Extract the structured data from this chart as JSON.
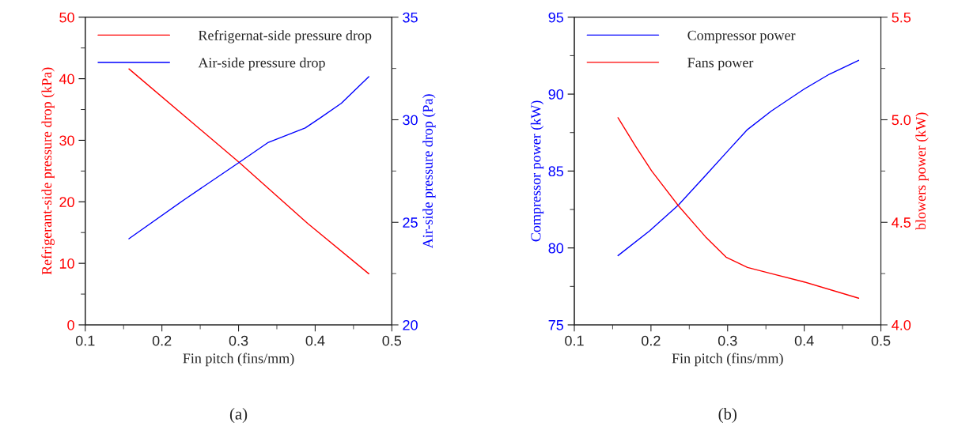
{
  "chart_data": [
    {
      "type": "line",
      "xlabel": "Fin pitch (fins/mm)",
      "ylabel": "Refrigerant-side pressure drop (kPa)",
      "y2label": "Air-side pressure drop (Pa)",
      "xlim": [
        0.1,
        0.5
      ],
      "xticks": [
        0.1,
        0.2,
        0.3,
        0.4,
        0.5
      ],
      "ylim": [
        0,
        50
      ],
      "yticks": [
        0,
        10,
        20,
        30,
        40,
        50
      ],
      "y2lim": [
        20,
        35
      ],
      "y2ticks": [
        20,
        25,
        30,
        35
      ],
      "legend": "top left",
      "grid": false,
      "annotations": [
        "(a)"
      ],
      "series": [
        {
          "name": "Refrigernat-side pressure drop",
          "color": "#ff0000",
          "x": [
            0.157,
            0.3,
            0.39,
            0.47
          ],
          "values": [
            41.6,
            26.5,
            16.5,
            8.3
          ]
        },
        {
          "name": "Air-side pressure drop",
          "color": "#0000ff",
          "axis": "y2",
          "x": [
            0.157,
            0.229,
            0.3,
            0.339,
            0.387,
            0.407,
            0.434,
            0.47
          ],
          "values": [
            24.2,
            26.1,
            27.9,
            28.9,
            29.6,
            30.1,
            30.8,
            32.1
          ]
        }
      ]
    },
    {
      "type": "line",
      "xlabel": "Fin pitch (fins/mm)",
      "ylabel": "Compressor power (kW)",
      "y2label": "blowers power (kW)",
      "xlim": [
        0.1,
        0.5
      ],
      "xticks": [
        0.1,
        0.2,
        0.3,
        0.4,
        0.5
      ],
      "ylim": [
        75,
        95
      ],
      "yticks": [
        75,
        80,
        85,
        90,
        95
      ],
      "y2lim": [
        4.0,
        5.5
      ],
      "y2ticks": [
        {
          "value": 4.0,
          "label": "4.0"
        },
        4.5,
        {
          "value": 5.0,
          "label": "5.0"
        },
        5.5
      ],
      "legend": "top left",
      "grid": false,
      "annotations": [
        "(b)"
      ],
      "series": [
        {
          "name": "Compressor power",
          "color": "#0000ff",
          "x": [
            0.157,
            0.198,
            0.236,
            0.271,
            0.302,
            0.326,
            0.357,
            0.399,
            0.433,
            0.471
          ],
          "values": [
            79.5,
            81.1,
            82.8,
            84.7,
            86.4,
            87.7,
            88.9,
            90.3,
            91.3,
            92.2
          ]
        },
        {
          "name": "Fans power",
          "color": "#ff0000",
          "axis": "y2",
          "x": [
            0.157,
            0.18,
            0.201,
            0.236,
            0.271,
            0.298,
            0.326,
            0.357,
            0.399,
            0.471
          ],
          "values": [
            5.01,
            4.87,
            4.75,
            4.58,
            4.43,
            4.33,
            4.28,
            4.25,
            4.21,
            4.13
          ]
        }
      ]
    }
  ]
}
